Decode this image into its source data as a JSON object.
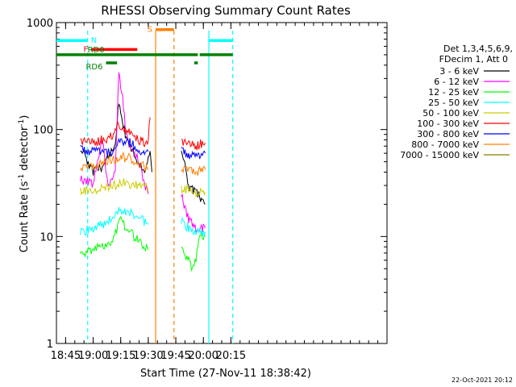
{
  "chart_data": {
    "type": "line",
    "title": "RHESSI Observing Summary Count Rates",
    "xlabel": "Start Time (27-Nov-11 18:38:42)",
    "ylabel_main": "Count Rate (s",
    "ylabel_sup1": "-1",
    "ylabel_mid": " detector",
    "ylabel_sup2": "-1",
    "ylabel_end": ")",
    "yscale": "log",
    "ylim": [
      1,
      1000
    ],
    "xlim_min": [
      40,
      220
    ],
    "x_tick_labels": [
      {
        "label": "18:45",
        "t": 45
      },
      {
        "label": "19:00",
        "t": 60
      },
      {
        "label": "19:15",
        "t": 75
      },
      {
        "label": "19:30",
        "t": 90
      },
      {
        "label": "19:45",
        "t": 105
      },
      {
        "label": "20:00",
        "t": 120
      },
      {
        "label": "20:15",
        "t": 135
      }
    ],
    "y_tick_labels": [
      {
        "label": "1",
        "v": 1
      },
      {
        "label": "10",
        "v": 10
      },
      {
        "label": "100",
        "v": 100
      },
      {
        "label": "1000",
        "v": 1000
      }
    ],
    "legend_header": [
      "Det 1,3,4,5,6,9,",
      "FDecim 1, Att 0"
    ],
    "series": [
      {
        "name": "3 - 6 keV",
        "color": "#000000",
        "points": [
          [
            53,
            70
          ],
          [
            60,
            40
          ],
          [
            65,
            45
          ],
          [
            72,
            70
          ],
          [
            74,
            180
          ],
          [
            76,
            120
          ],
          [
            78,
            80
          ],
          [
            85,
            50
          ],
          [
            88,
            40
          ],
          [
            91,
            60
          ],
          [
            92,
            40
          ],
          [
            108,
            70
          ],
          [
            112,
            30
          ],
          [
            116,
            25
          ],
          [
            120,
            22
          ],
          [
            121,
            20
          ]
        ]
      },
      {
        "name": "6 - 12 keV",
        "color": "#ff00ff",
        "points": [
          [
            53,
            35
          ],
          [
            60,
            30
          ],
          [
            62,
            50
          ],
          [
            65,
            80
          ],
          [
            68,
            30
          ],
          [
            72,
            40
          ],
          [
            74,
            340
          ],
          [
            76,
            200
          ],
          [
            78,
            90
          ],
          [
            80,
            70
          ],
          [
            85,
            50
          ],
          [
            88,
            30
          ],
          [
            90,
            25
          ],
          [
            108,
            25
          ],
          [
            112,
            14
          ],
          [
            116,
            12
          ],
          [
            120,
            12
          ],
          [
            121,
            12
          ]
        ]
      },
      {
        "name": "12 - 25 keV",
        "color": "#00ff00",
        "points": [
          [
            53,
            7
          ],
          [
            60,
            7.5
          ],
          [
            65,
            8
          ],
          [
            70,
            9
          ],
          [
            75,
            14
          ],
          [
            80,
            11
          ],
          [
            85,
            9
          ],
          [
            89,
            8
          ],
          [
            90,
            7.5
          ],
          [
            108,
            8
          ],
          [
            112,
            6
          ],
          [
            114,
            5
          ],
          [
            116,
            6
          ],
          [
            118,
            10
          ],
          [
            120,
            10
          ],
          [
            121,
            10
          ]
        ]
      },
      {
        "name": "25 - 50 keV",
        "color": "#00ffff",
        "points": [
          [
            53,
            11
          ],
          [
            60,
            12
          ],
          [
            65,
            13
          ],
          [
            70,
            15
          ],
          [
            75,
            18
          ],
          [
            80,
            17
          ],
          [
            85,
            15
          ],
          [
            90,
            13
          ],
          [
            108,
            14
          ],
          [
            112,
            12
          ],
          [
            116,
            11
          ],
          [
            120,
            11
          ],
          [
            121,
            11
          ]
        ]
      },
      {
        "name": "50 - 100 keV",
        "color": "#cccc00",
        "points": [
          [
            53,
            27
          ],
          [
            60,
            26
          ],
          [
            65,
            28
          ],
          [
            70,
            29
          ],
          [
            75,
            32
          ],
          [
            80,
            31
          ],
          [
            85,
            30
          ],
          [
            90,
            28
          ],
          [
            108,
            28
          ],
          [
            112,
            27
          ],
          [
            116,
            25
          ],
          [
            120,
            26
          ],
          [
            121,
            26
          ]
        ]
      },
      {
        "name": "100 - 300 keV",
        "color": "#ff0000",
        "points": [
          [
            53,
            78
          ],
          [
            60,
            75
          ],
          [
            65,
            80
          ],
          [
            70,
            85
          ],
          [
            74,
            110
          ],
          [
            76,
            95
          ],
          [
            80,
            95
          ],
          [
            85,
            80
          ],
          [
            88,
            75
          ],
          [
            90,
            78
          ],
          [
            91,
            130
          ],
          [
            108,
            78
          ],
          [
            112,
            72
          ],
          [
            116,
            70
          ],
          [
            120,
            75
          ],
          [
            121,
            75
          ]
        ]
      },
      {
        "name": "300 - 800 keV",
        "color": "#0000ff",
        "points": [
          [
            53,
            64
          ],
          [
            60,
            62
          ],
          [
            65,
            64
          ],
          [
            70,
            60
          ],
          [
            74,
            85
          ],
          [
            76,
            75
          ],
          [
            80,
            75
          ],
          [
            85,
            65
          ],
          [
            88,
            60
          ],
          [
            90,
            62
          ],
          [
            108,
            62
          ],
          [
            112,
            58
          ],
          [
            116,
            55
          ],
          [
            120,
            60
          ],
          [
            121,
            60
          ]
        ]
      },
      {
        "name": "800 - 7000 keV",
        "color": "#ff8000",
        "points": [
          [
            53,
            44
          ],
          [
            60,
            45
          ],
          [
            65,
            48
          ],
          [
            70,
            52
          ],
          [
            75,
            55
          ],
          [
            80,
            54
          ],
          [
            85,
            48
          ],
          [
            90,
            42
          ],
          [
            108,
            43
          ],
          [
            112,
            42
          ],
          [
            116,
            40
          ],
          [
            120,
            42
          ],
          [
            121,
            42
          ]
        ]
      },
      {
        "name": "7000 - 15000 keV",
        "color": "#808000",
        "points": []
      }
    ],
    "status_bars": [
      {
        "label": "N",
        "color": "#00ffff",
        "segments": [
          [
            40,
            57
          ],
          [
            123,
            136
          ]
        ],
        "level": 680
      },
      {
        "label": "F",
        "color": "#ff0000",
        "segments": [
          [
            59,
            84
          ]
        ],
        "level": 560
      },
      {
        "label": "S",
        "color": "#ff8000",
        "segments": [
          [
            94,
            104
          ]
        ],
        "level": 860
      },
      {
        "label": "RD0",
        "color": "#008000",
        "segments": [
          [
            40,
            117
          ],
          [
            118,
            136
          ]
        ],
        "level": 500
      },
      {
        "label": "RD6",
        "color": "#008000",
        "segments": [
          [
            67,
            73
          ],
          [
            115,
            117
          ]
        ],
        "level": 420
      }
    ],
    "vertical_markers": [
      {
        "t": 57,
        "color": "#00ffff",
        "style": "dashed"
      },
      {
        "t": 94,
        "color": "#ff8000",
        "style": "solid"
      },
      {
        "t": 104,
        "color": "#ff8000",
        "style": "dashed"
      },
      {
        "t": 123,
        "color": "#00ffff",
        "style": "solid"
      },
      {
        "t": 136,
        "color": "#00ffff",
        "style": "dashed"
      }
    ]
  },
  "footer_date": "22-Oct-2021 20:12"
}
